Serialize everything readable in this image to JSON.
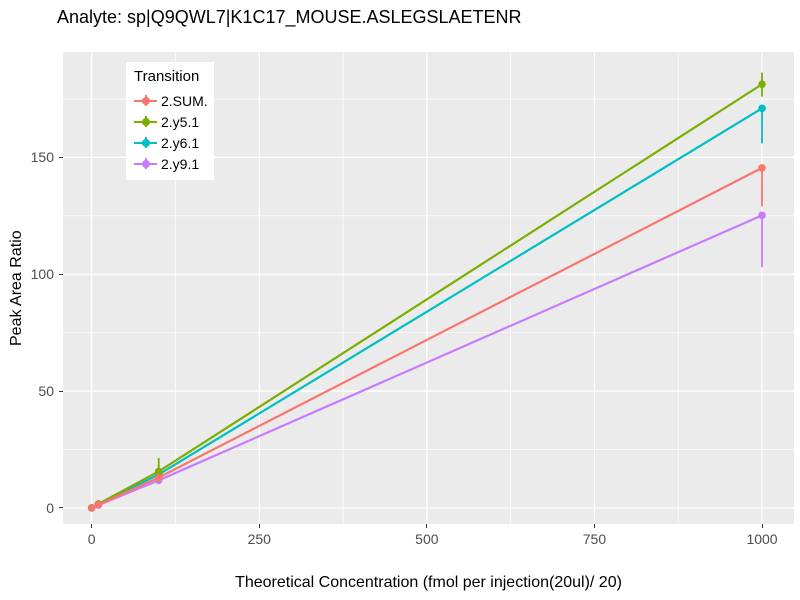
{
  "title": "Analyte: sp|Q9QWL7|K1C17_MOUSE.ASLEGSLAETENR",
  "legend": {
    "title": "Transition",
    "items": [
      {
        "label": "2.SUM.",
        "color": "#F8766D"
      },
      {
        "label": "2.y5.1",
        "color": "#7CAE00"
      },
      {
        "label": "2.y6.1",
        "color": "#00BFC4"
      },
      {
        "label": "2.y9.1",
        "color": "#C77CFF"
      }
    ]
  },
  "chart_data": {
    "type": "line",
    "title": "Analyte: sp|Q9QWL7|K1C17_MOUSE.ASLEGSLAETENR",
    "xlabel": "Theoretical Concentration (fmol per injection(20ul)/ 20)",
    "ylabel": "Peak Area Ratio",
    "legend_title": "Transition",
    "legend_position": "inside-top-left",
    "grid": true,
    "panel_bg": "#EBEBEB",
    "grid_color": "#FFFFFF",
    "axis_text_color": "#4D4D4D",
    "x_ticks": [
      0,
      250,
      500,
      750,
      1000
    ],
    "x_minor_ticks": [
      125,
      375,
      625,
      875
    ],
    "y_ticks": [
      0,
      50,
      100,
      150
    ],
    "y_minor_ticks": [
      25,
      75,
      125,
      175
    ],
    "x_domain": [
      -42.8,
      1047.7
    ],
    "y_domain": [
      -6.9,
      195.1
    ],
    "series": [
      {
        "name": "2.SUM.",
        "color": "#F8766D",
        "x": [
          0,
          10,
          100,
          1000
        ],
        "y": [
          0,
          1.3,
          13.0,
          145.5
        ],
        "error_low": [
          null,
          null,
          null,
          129.0
        ],
        "error_high": [
          null,
          null,
          null,
          147.0
        ]
      },
      {
        "name": "2.y5.1",
        "color": "#7CAE00",
        "x": [
          0,
          10,
          100,
          1000
        ],
        "y": [
          0,
          1.7,
          15.6,
          181.3
        ],
        "error_low": [
          null,
          null,
          11.0,
          176.0
        ],
        "error_high": [
          null,
          null,
          21.4,
          186.3
        ]
      },
      {
        "name": "2.y6.1",
        "color": "#00BFC4",
        "x": [
          0,
          10,
          100,
          1000
        ],
        "y": [
          0,
          1.5,
          14.3,
          171.0
        ],
        "error_low": [
          null,
          null,
          null,
          156.0
        ],
        "error_high": [
          null,
          null,
          null,
          172.0
        ]
      },
      {
        "name": "2.y9.1",
        "color": "#C77CFF",
        "x": [
          0,
          10,
          100,
          1000
        ],
        "y": [
          0,
          1.2,
          11.8,
          125.2
        ],
        "error_low": [
          null,
          null,
          null,
          103.0
        ],
        "error_high": [
          null,
          null,
          null,
          126.5
        ]
      }
    ]
  }
}
